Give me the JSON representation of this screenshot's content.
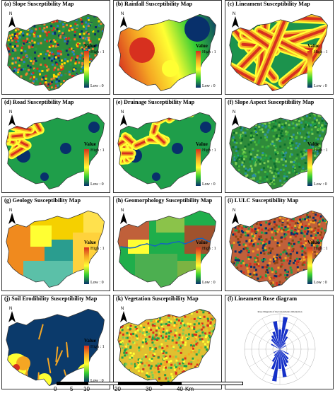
{
  "panels": [
    {
      "title": "(a) Slope Susceptibility Map",
      "legend": true,
      "style": "noise-rg"
    },
    {
      "title": "(b) Rainfall Susceptibility Map",
      "legend": true,
      "style": "rainfall"
    },
    {
      "title": "(c) Lineament Susceptibility Map",
      "legend": true,
      "style": "lineament"
    },
    {
      "title": "(d) Road Susceptibility Map",
      "legend": true,
      "style": "road"
    },
    {
      "title": "(e) Drainage Susceptibility Map",
      "legend": true,
      "style": "road"
    },
    {
      "title": "(f) Slope Aspect Susceptibility Map",
      "legend": true,
      "style": "green"
    },
    {
      "title": "(g) Geology Susceptibility Map",
      "legend": true,
      "style": "geology"
    },
    {
      "title": "(h) Geomorphology Susceptibility Map",
      "legend": true,
      "style": "geomorph"
    },
    {
      "title": "(i) LULC Susceptibility Map",
      "legend": true,
      "style": "lulc"
    },
    {
      "title": "(j) Soil Erodibility Susceptibility Map",
      "legend": true,
      "style": "soil"
    },
    {
      "title": "(k) Vegetation Susceptibility Map",
      "legend": false,
      "style": "veg"
    },
    {
      "title": "(l) Lineament Rose diagram",
      "legend": false,
      "style": "rose"
    }
  ],
  "legend": {
    "title": "Value",
    "high": "High : 1",
    "low": "Low : 0"
  },
  "north_label": "N",
  "rose_caption": "Rose Diagram of the Lineaments Orientation",
  "scale": {
    "ticks": [
      "0",
      "5",
      "10",
      "20",
      "30",
      "40"
    ],
    "unit": "Km"
  },
  "colors": {
    "high": "#d7301f",
    "mid_high": "#f5a623",
    "mid": "#ffff33",
    "mid_low": "#33cc33",
    "low": "#08306b"
  }
}
